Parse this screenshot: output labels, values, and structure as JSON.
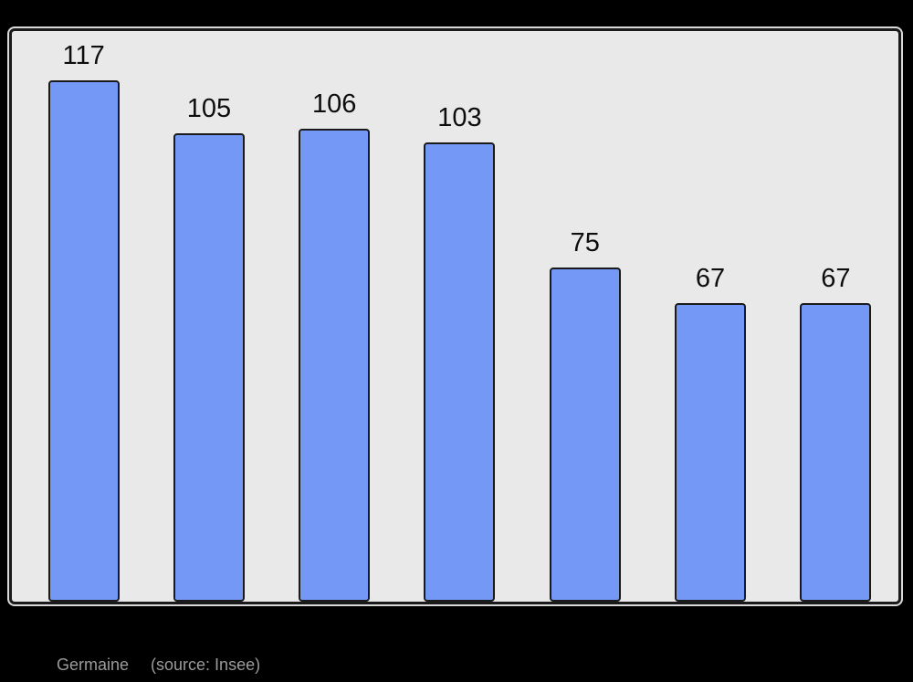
{
  "page": {
    "background": "#000000"
  },
  "chart_data": {
    "type": "bar",
    "values": [
      117,
      105,
      106,
      103,
      75,
      67,
      67
    ],
    "bar_labels": [
      "117",
      "105",
      "106",
      "103",
      "75",
      "67",
      "67"
    ],
    "title": "",
    "xlabel": "",
    "ylabel": "",
    "ylim": [
      0,
      128
    ],
    "grid": false,
    "legend": false,
    "axis_tick_labels_visible": false,
    "bar_color": "#7498f5",
    "bar_border_color": "#1a1a1a",
    "plot_background": "#e9e9e9",
    "plot_border_color": "#1a1a1a",
    "label_color": "#0d0d0d"
  },
  "caption": {
    "name": "Germaine",
    "source": "(source: Insee)",
    "color": "#9b9b9b"
  }
}
